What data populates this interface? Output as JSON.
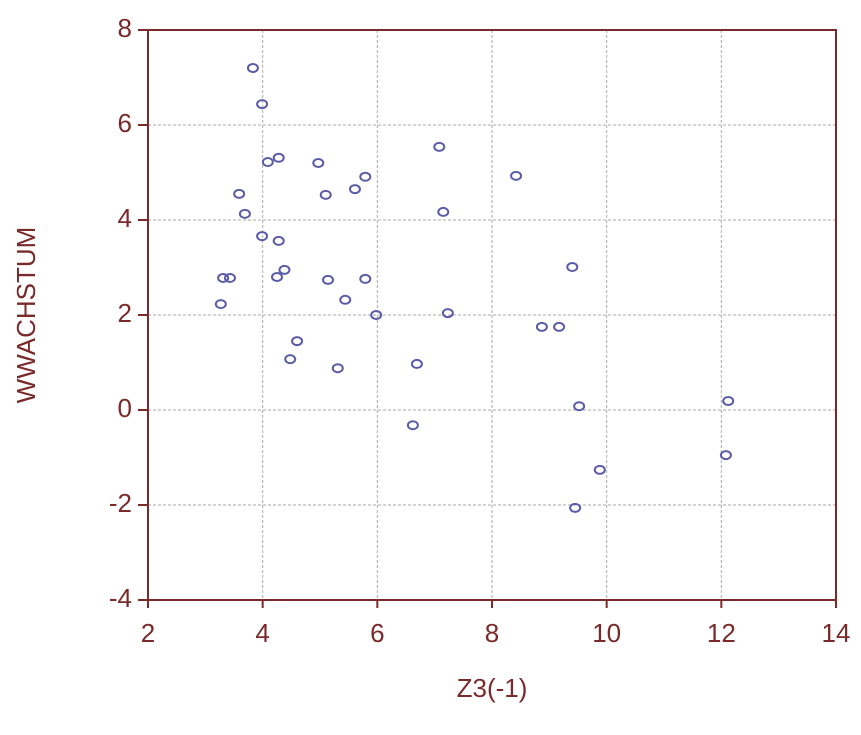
{
  "chart_data": {
    "type": "scatter",
    "x_label": "Z3(-1)",
    "y_label": "WWACHSTUM",
    "series": [
      {
        "color": "#5b5ba8",
        "x": [
          3.83,
          3.99,
          4.09,
          4.28,
          4.97,
          3.59,
          3.69,
          5.1,
          5.61,
          5.79,
          7.08,
          7.15,
          8.42,
          3.99,
          4.28,
          3.31,
          3.43,
          4.25,
          4.38,
          5.14,
          5.79,
          5.44,
          3.27,
          5.98,
          7.23,
          9.4,
          8.87,
          9.17,
          4.6,
          4.48,
          5.31,
          6.69,
          6.62,
          9.52,
          12.12,
          12.08,
          9.88,
          9.45
        ],
        "values": [
          7.2,
          6.44,
          5.22,
          5.31,
          5.2,
          4.55,
          4.13,
          4.53,
          4.65,
          4.91,
          5.54,
          4.17,
          4.93,
          3.66,
          3.56,
          2.78,
          2.78,
          2.8,
          2.95,
          2.74,
          2.76,
          2.32,
          2.23,
          2.0,
          2.04,
          3.01,
          1.75,
          1.75,
          1.45,
          1.07,
          0.88,
          0.97,
          -0.32,
          0.08,
          0.19,
          -0.95,
          -1.26,
          -2.06
        ]
      }
    ],
    "xlim": [
      2,
      14
    ],
    "xticks": [
      2,
      4,
      6,
      8,
      10,
      12,
      14
    ],
    "ylim": [
      -4,
      8
    ],
    "yticks": [
      -4,
      -2,
      0,
      2,
      4,
      6,
      8
    ],
    "grid": true,
    "axis_color": "#7a2a2a",
    "grid_color": "#aaaaaa"
  }
}
